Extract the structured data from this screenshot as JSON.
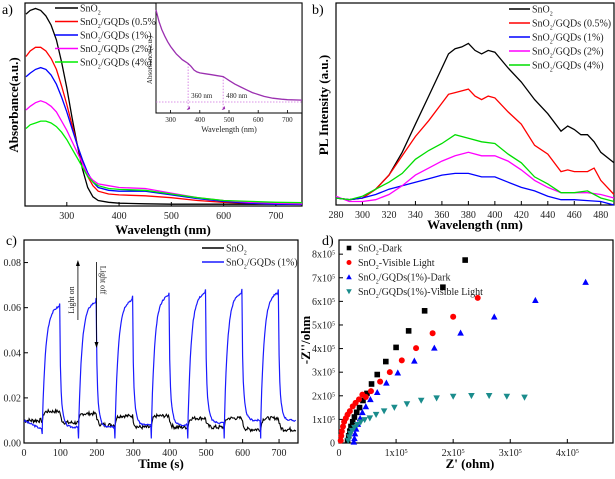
{
  "chart_data": [
    {
      "id": "a",
      "panel_label": "a)",
      "type": "line",
      "xlabel": "Wavelength (nm)",
      "ylabel": "Absorbance(a.u.)",
      "xlim": [
        220,
        750
      ],
      "ylim": [
        0,
        1.1
      ],
      "xticks": [
        300,
        400,
        500,
        600,
        700
      ],
      "yticks": [],
      "legend": "top-center",
      "series": [
        {
          "name": "SnO2",
          "label": "SnO",
          "sub": "2",
          "suffix": "",
          "color": "#000000",
          "x": [
            222,
            230,
            240,
            250,
            260,
            270,
            280,
            290,
            300,
            310,
            320,
            330,
            340,
            350,
            360,
            380,
            400,
            450,
            500,
            550,
            600,
            650,
            700,
            750
          ],
          "y": [
            1.04,
            1.06,
            1.07,
            1.06,
            1.03,
            0.98,
            0.9,
            0.78,
            0.64,
            0.48,
            0.33,
            0.2,
            0.1,
            0.05,
            0.03,
            0.02,
            0.015,
            0.012,
            0.01,
            0.01,
            0.01,
            0.01,
            0.01,
            0.01
          ]
        },
        {
          "name": "SnO2/GQDs (0.5%)",
          "label": "SnO",
          "sub": "2",
          "suffix": "/GQDs (0.5%)",
          "color": "#ff0000",
          "x": [
            222,
            230,
            240,
            250,
            260,
            270,
            280,
            290,
            300,
            310,
            320,
            330,
            340,
            350,
            360,
            380,
            400,
            450,
            500,
            550,
            600,
            650,
            700,
            750
          ],
          "y": [
            0.81,
            0.84,
            0.86,
            0.86,
            0.84,
            0.8,
            0.74,
            0.65,
            0.55,
            0.44,
            0.33,
            0.24,
            0.16,
            0.11,
            0.08,
            0.065,
            0.06,
            0.055,
            0.045,
            0.03,
            0.02,
            0.015,
            0.012,
            0.01
          ]
        },
        {
          "name": "SnO2/GQDs (1%)",
          "label": "SnO",
          "sub": "2",
          "suffix": "/GQDs (1%)",
          "color": "#0000ff",
          "x": [
            222,
            230,
            240,
            250,
            260,
            270,
            280,
            290,
            300,
            310,
            320,
            330,
            340,
            350,
            360,
            380,
            400,
            450,
            500,
            550,
            600,
            650,
            700,
            750
          ],
          "y": [
            0.7,
            0.72,
            0.74,
            0.75,
            0.74,
            0.71,
            0.66,
            0.59,
            0.51,
            0.42,
            0.33,
            0.25,
            0.18,
            0.13,
            0.1,
            0.085,
            0.08,
            0.08,
            0.06,
            0.04,
            0.025,
            0.015,
            0.01,
            0.008
          ]
        },
        {
          "name": "SnO2/GQDs (2%)",
          "label": "SnO",
          "sub": "2",
          "suffix": "/GQDs (2%)",
          "color": "#ff00ff",
          "x": [
            222,
            230,
            240,
            250,
            260,
            270,
            280,
            290,
            300,
            310,
            320,
            330,
            340,
            350,
            360,
            380,
            400,
            450,
            500,
            550,
            600,
            650,
            700,
            750
          ],
          "y": [
            0.52,
            0.54,
            0.56,
            0.57,
            0.56,
            0.54,
            0.51,
            0.46,
            0.41,
            0.35,
            0.29,
            0.23,
            0.17,
            0.14,
            0.12,
            0.11,
            0.1,
            0.095,
            0.07,
            0.045,
            0.03,
            0.02,
            0.015,
            0.012
          ]
        },
        {
          "name": "SnO2/GQDs (4%)",
          "label": "SnO",
          "sub": "2",
          "suffix": "/GQDs (4%)",
          "color": "#00ee00",
          "x": [
            222,
            230,
            240,
            250,
            260,
            270,
            280,
            290,
            300,
            310,
            320,
            330,
            340,
            350,
            360,
            380,
            400,
            450,
            500,
            550,
            600,
            650,
            700,
            750
          ],
          "y": [
            0.42,
            0.44,
            0.45,
            0.46,
            0.46,
            0.45,
            0.43,
            0.4,
            0.36,
            0.31,
            0.26,
            0.21,
            0.16,
            0.13,
            0.11,
            0.095,
            0.09,
            0.085,
            0.065,
            0.045,
            0.03,
            0.025,
            0.02,
            0.018
          ]
        }
      ],
      "inset": {
        "type": "line",
        "xlabel": "Wavelength (nm)",
        "ylabel": "Absorbance(a.u.)",
        "xlim": [
          250,
          750
        ],
        "ylim": [
          0,
          1
        ],
        "xticks": [
          300,
          400,
          500,
          600,
          700
        ],
        "color": "#9b30b0",
        "x": [
          250,
          260,
          270,
          280,
          290,
          300,
          310,
          320,
          330,
          340,
          350,
          360,
          370,
          380,
          390,
          400,
          420,
          440,
          460,
          480,
          490,
          500,
          520,
          540,
          560,
          580,
          600,
          620,
          650,
          680,
          700,
          750
        ],
        "y": [
          0.98,
          0.86,
          0.77,
          0.7,
          0.64,
          0.59,
          0.55,
          0.51,
          0.48,
          0.45,
          0.43,
          0.41,
          0.38,
          0.34,
          0.32,
          0.31,
          0.3,
          0.29,
          0.28,
          0.27,
          0.25,
          0.23,
          0.19,
          0.16,
          0.13,
          0.1,
          0.08,
          0.06,
          0.04,
          0.03,
          0.025,
          0.02
        ],
        "annotations": [
          {
            "text": "360 nm",
            "x": 360
          },
          {
            "text": "480 nm",
            "x": 480
          }
        ]
      }
    },
    {
      "id": "b",
      "panel_label": "b)",
      "type": "line",
      "xlabel": "Wavelength (nm)",
      "ylabel": "PL Intensity (a.u.)",
      "xlim": [
        280,
        490
      ],
      "ylim": [
        0,
        1.15
      ],
      "xticks": [
        280,
        300,
        320,
        340,
        360,
        380,
        400,
        420,
        440,
        460,
        480
      ],
      "yticks": [],
      "legend": "top-right",
      "series": [
        {
          "name": "SnO2",
          "label": "SnO",
          "sub": "2",
          "suffix": "",
          "color": "#000000",
          "x": [
            280,
            290,
            300,
            310,
            320,
            330,
            340,
            350,
            360,
            365,
            370,
            375,
            380,
            385,
            390,
            395,
            400,
            410,
            420,
            430,
            440,
            450,
            455,
            460,
            465,
            470,
            475,
            480,
            490
          ],
          "y": [
            0.04,
            0.03,
            0.04,
            0.09,
            0.17,
            0.3,
            0.46,
            0.62,
            0.78,
            0.86,
            0.89,
            0.9,
            0.92,
            0.88,
            0.86,
            0.88,
            0.87,
            0.78,
            0.7,
            0.6,
            0.52,
            0.42,
            0.45,
            0.43,
            0.4,
            0.4,
            0.36,
            0.3,
            0.24
          ]
        },
        {
          "name": "SnO2/GQDs (0.5%)",
          "label": "SnO",
          "sub": "2",
          "suffix": "/GQDs (0.5%)",
          "color": "#ff0000",
          "x": [
            280,
            290,
            300,
            310,
            320,
            330,
            340,
            350,
            360,
            365,
            370,
            380,
            385,
            390,
            395,
            400,
            410,
            420,
            430,
            440,
            450,
            455,
            460,
            465,
            470,
            475,
            480,
            490
          ],
          "y": [
            0.04,
            0.03,
            0.04,
            0.09,
            0.17,
            0.28,
            0.39,
            0.48,
            0.58,
            0.63,
            0.64,
            0.66,
            0.62,
            0.6,
            0.62,
            0.61,
            0.53,
            0.46,
            0.34,
            0.29,
            0.19,
            0.2,
            0.19,
            0.19,
            0.19,
            0.21,
            0.14,
            0.06
          ]
        },
        {
          "name": "SnO2/GQDs (1%)",
          "label": "SnO",
          "sub": "2",
          "suffix": "/GQDs (1%)",
          "color": "#0000ff",
          "x": [
            280,
            290,
            300,
            310,
            320,
            330,
            340,
            350,
            360,
            370,
            380,
            390,
            400,
            410,
            420,
            430,
            440,
            450,
            460,
            470,
            480,
            490
          ],
          "y": [
            0.04,
            0.03,
            0.04,
            0.06,
            0.09,
            0.11,
            0.13,
            0.15,
            0.17,
            0.18,
            0.18,
            0.16,
            0.16,
            0.13,
            0.1,
            0.08,
            0.05,
            0.03,
            0.03,
            0.025,
            0.02,
            0.0
          ]
        },
        {
          "name": "SnO2/GQDs (2%)",
          "label": "SnO",
          "sub": "2",
          "suffix": "/GQDs (2%)",
          "color": "#ff00ff",
          "x": [
            280,
            290,
            300,
            310,
            320,
            330,
            340,
            350,
            360,
            370,
            380,
            390,
            400,
            410,
            420,
            430,
            440,
            450,
            460,
            470,
            480,
            490
          ],
          "y": [
            0.05,
            0.02,
            0.02,
            0.03,
            0.06,
            0.11,
            0.17,
            0.21,
            0.25,
            0.28,
            0.3,
            0.28,
            0.28,
            0.25,
            0.2,
            0.14,
            0.1,
            0.07,
            0.07,
            0.07,
            0.06,
            0.04
          ]
        },
        {
          "name": "SnO2/GQDs (4%)",
          "label": "SnO",
          "sub": "2",
          "suffix": "/GQDs (4%)",
          "color": "#00dd00",
          "x": [
            280,
            290,
            300,
            310,
            320,
            330,
            340,
            350,
            360,
            370,
            380,
            390,
            400,
            410,
            420,
            430,
            440,
            450,
            460,
            470,
            480,
            490
          ],
          "y": [
            0.04,
            0.03,
            0.05,
            0.09,
            0.13,
            0.18,
            0.26,
            0.31,
            0.35,
            0.4,
            0.38,
            0.36,
            0.35,
            0.29,
            0.24,
            0.16,
            0.12,
            0.07,
            0.07,
            0.08,
            0.04,
            0.02
          ]
        }
      ]
    },
    {
      "id": "c",
      "panel_label": "c)",
      "type": "line",
      "xlabel": "Time (s)",
      "ylabel": "",
      "xlim": [
        0,
        752
      ],
      "ylim": [
        0,
        0.09
      ],
      "xticks": [
        0,
        100,
        200,
        300,
        400,
        500,
        600,
        700
      ],
      "yticks": [
        0.0,
        0.02,
        0.04,
        0.06,
        0.08
      ],
      "ytick_labels": [
        "0.00",
        "0.02",
        "0.04",
        "0.06",
        "0.08"
      ],
      "legend": "top-right",
      "annotations": [
        {
          "text": "Light on",
          "x": 137,
          "direction": "up"
        },
        {
          "text": "Light off",
          "x": 210,
          "direction": "down"
        }
      ],
      "cycles": {
        "on_times": [
          50,
          150,
          250,
          350,
          450,
          550,
          650
        ],
        "off_times": [
          98,
          198,
          298,
          398,
          498,
          598,
          698
        ],
        "blue_plateau": [
          0.062,
          0.064,
          0.065,
          0.067,
          0.068,
          0.068,
          0.068
        ],
        "blue_dark_level": [
          0.006,
          0.007,
          0.007,
          0.008,
          0.008,
          0.009,
          0.01
        ],
        "black_light_level": [
          0.014,
          0.013,
          0.012,
          0.012,
          0.011,
          0.011,
          0.011
        ],
        "black_dark_level": [
          0.009,
          0.008,
          0.007,
          0.007,
          0.007,
          0.006,
          0.006
        ]
      },
      "series": [
        {
          "name": "SnO2",
          "label": "SnO",
          "sub": "2",
          "suffix": "",
          "color": "#000000"
        },
        {
          "name": "SnO2/GQDs (1%)",
          "label": "SnO",
          "sub": "2",
          "suffix": "/GQDs (1%)",
          "color": "#1a1aff"
        }
      ]
    },
    {
      "id": "d",
      "panel_label": "d)",
      "type": "scatter",
      "xlabel": "Z' (ohm)",
      "ylabel": "-Z''/ohm",
      "xlim": [
        0,
        4.8
      ],
      "ylim": [
        0,
        8.6
      ],
      "unit_multiplier": "x10^5",
      "xticks": [
        0,
        1,
        2,
        3,
        4
      ],
      "xtick_labels": [
        "0",
        "1x10",
        "2x10",
        "3x10",
        "4x10"
      ],
      "yticks": [
        0,
        1,
        2,
        3,
        4,
        5,
        6,
        7,
        8
      ],
      "ytick_labels": [
        "0",
        "1x10",
        "2x10",
        "3x10",
        "4x10",
        "5x10",
        "6x10",
        "7x10",
        "8x10"
      ],
      "tick_exponent": "5",
      "legend": "top-left",
      "series": [
        {
          "name": "SnO2-Dark",
          "label": "SnO",
          "sub": "2",
          "suffix": "-Dark",
          "color": "#000000",
          "marker": "square",
          "x": [
            0.15,
            0.17,
            0.19,
            0.21,
            0.24,
            0.27,
            0.31,
            0.36,
            0.42,
            0.49,
            0.57,
            0.67,
            0.82,
            1.0,
            1.22,
            1.5,
            1.82,
            2.21
          ],
          "y": [
            0.1,
            0.3,
            0.5,
            0.7,
            0.9,
            1.1,
            1.3,
            1.5,
            1.8,
            2.1,
            2.5,
            2.9,
            3.45,
            4.05,
            4.75,
            5.6,
            6.6,
            7.75
          ]
        },
        {
          "name": "SnO2-Visible Light",
          "label": "SnO",
          "sub": "2",
          "suffix": "-Visible Light",
          "color": "#ff0000",
          "marker": "circle",
          "x": [
            0.03,
            0.04,
            0.05,
            0.07,
            0.09,
            0.12,
            0.15,
            0.19,
            0.24,
            0.29,
            0.35,
            0.41,
            0.47,
            0.56,
            0.72,
            0.89,
            1.1,
            1.35,
            1.64,
            2.0,
            2.43
          ],
          "y": [
            0.1,
            0.3,
            0.5,
            0.7,
            0.9,
            1.05,
            1.2,
            1.35,
            1.55,
            1.7,
            1.85,
            2.05,
            1.95,
            2.2,
            2.6,
            3.0,
            3.5,
            4.02,
            4.65,
            5.35,
            6.15
          ]
        },
        {
          "name": "SnO2/GQDs(1%)-Dark",
          "label": "SnO",
          "sub": "2",
          "suffix": "/GQDs(1%)-Dark",
          "color": "#0000ff",
          "marker": "triangle-up",
          "x": [
            0.26,
            0.27,
            0.28,
            0.3,
            0.33,
            0.37,
            0.41,
            0.47,
            0.55,
            0.67,
            0.83,
            1.03,
            1.32,
            1.67,
            2.13,
            2.72,
            3.44,
            4.32
          ],
          "y": [
            0.05,
            0.2,
            0.4,
            0.6,
            0.8,
            1.05,
            1.3,
            1.55,
            1.85,
            2.15,
            2.55,
            2.98,
            3.48,
            4.03,
            4.67,
            5.35,
            6.05,
            6.82
          ]
        },
        {
          "name": "SnO2/GQDs(1%)-Visible Light",
          "label": "SnO",
          "sub": "2",
          "suffix": "/GQDs(1%)-Visible Light",
          "color": "#1a8c8c",
          "marker": "triangle-down",
          "x": [
            0.16,
            0.18,
            0.2,
            0.23,
            0.27,
            0.32,
            0.38,
            0.45,
            0.54,
            0.65,
            0.79,
            0.97,
            1.19,
            1.44,
            1.71,
            2.0,
            2.32,
            2.63,
            2.94,
            3.25
          ],
          "y": [
            0.1,
            0.25,
            0.4,
            0.52,
            0.65,
            0.77,
            0.88,
            0.98,
            1.05,
            1.2,
            1.35,
            1.5,
            1.65,
            1.8,
            1.9,
            1.97,
            2.0,
            2.0,
            1.97,
            1.93
          ]
        }
      ]
    }
  ]
}
